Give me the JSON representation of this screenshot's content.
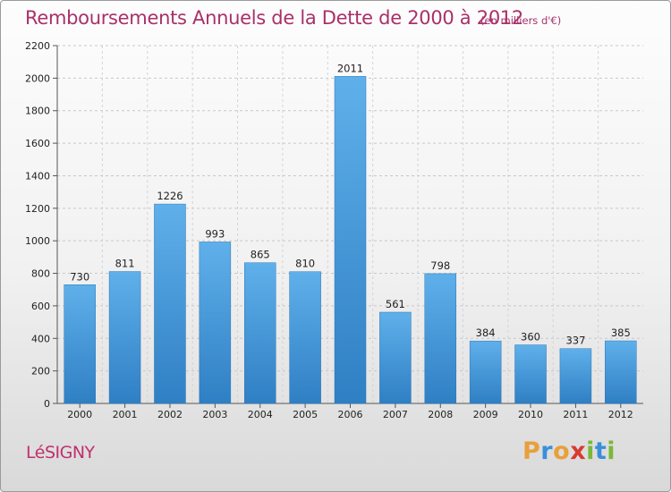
{
  "title": "Remboursements Annuels de la Dette de 2000 à 2012",
  "unit_note": "(en milliers d'€)",
  "commune": "LéSIGNY",
  "brand": {
    "letters": [
      "P",
      "r",
      "o",
      "x",
      "i",
      "t",
      "i"
    ],
    "colors": [
      "#e8a03a",
      "#3a8fd8",
      "#e8a03a",
      "#d93a30",
      "#7ab83a",
      "#3a8fd8",
      "#7ab83a"
    ]
  },
  "colors": {
    "bar": "#3d8fd6",
    "bar_light": "#5fb0ea",
    "title": "#a9306a"
  },
  "chart_data": {
    "type": "bar",
    "categories": [
      "2000",
      "2001",
      "2002",
      "2003",
      "2004",
      "2005",
      "2006",
      "2007",
      "2008",
      "2009",
      "2010",
      "2011",
      "2012"
    ],
    "values": [
      730,
      811,
      1226,
      993,
      865,
      810,
      2011,
      561,
      798,
      384,
      360,
      337,
      385
    ],
    "yticks": [
      0,
      200,
      400,
      600,
      800,
      1000,
      1200,
      1400,
      1600,
      1800,
      2000,
      2200
    ],
    "ylim": [
      0,
      2200
    ],
    "grid": true,
    "xlabel": "",
    "ylabel": ""
  }
}
